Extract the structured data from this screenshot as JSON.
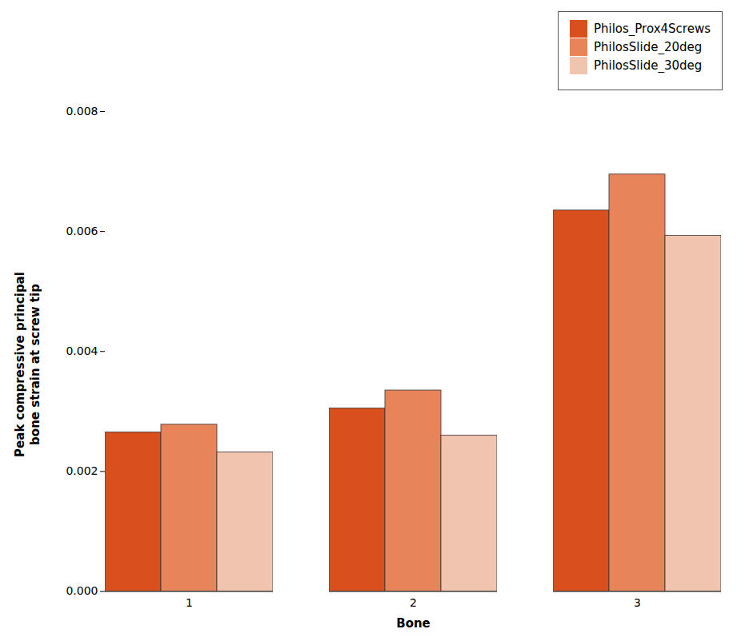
{
  "chart_data": {
    "type": "bar",
    "categories": [
      "1",
      "2",
      "3"
    ],
    "series": [
      {
        "name": "Philos_Prox4Screws",
        "color": "#D94F1E",
        "values": [
          0.00265,
          0.00305,
          0.00635
        ]
      },
      {
        "name": "PhilosSlide_20deg",
        "color": "#E8845A",
        "values": [
          0.00278,
          0.00335,
          0.00695
        ]
      },
      {
        "name": "PhilosSlide_30deg",
        "color": "#F0C4AE",
        "values": [
          0.00232,
          0.0026,
          0.00593
        ]
      }
    ],
    "xlabel": "Bone",
    "ylabel": "Peak compressive principal\nbone strain at screw tip",
    "ylim": [
      0.0,
      0.008
    ],
    "yticks": [
      {
        "value": 0.0,
        "label": "0.000"
      },
      {
        "value": 0.002,
        "label": "0.002"
      },
      {
        "value": 0.004,
        "label": "0.004"
      },
      {
        "value": 0.006,
        "label": "0.006"
      },
      {
        "value": 0.008,
        "label": "0.008"
      }
    ],
    "legend": "upper right",
    "grid": false
  }
}
